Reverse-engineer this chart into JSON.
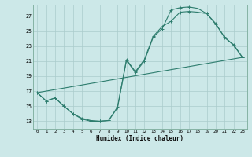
{
  "xlabel": "Humidex (Indice chaleur)",
  "bg_color": "#cce8e8",
  "grid_color": "#b8d8d8",
  "line_color": "#2e7d6e",
  "xlim": [
    -0.5,
    23.5
  ],
  "ylim": [
    12.0,
    28.5
  ],
  "xticks": [
    0,
    1,
    2,
    3,
    4,
    5,
    6,
    7,
    8,
    9,
    10,
    11,
    12,
    13,
    14,
    15,
    16,
    17,
    18,
    19,
    20,
    21,
    22,
    23
  ],
  "yticks": [
    13,
    15,
    17,
    19,
    21,
    23,
    25,
    27
  ],
  "line1_x": [
    0,
    1,
    2,
    3,
    4,
    5,
    6,
    7,
    8,
    9,
    10,
    11,
    12,
    13,
    14,
    15,
    16,
    17,
    18,
    19,
    20,
    21,
    22,
    23
  ],
  "line1_y": [
    16.8,
    15.7,
    16.1,
    15.0,
    14.0,
    13.3,
    13.0,
    13.0,
    13.1,
    14.8,
    21.1,
    19.5,
    21.0,
    24.2,
    25.3,
    27.8,
    28.1,
    28.2,
    28.0,
    27.3,
    26.0,
    24.1,
    23.2,
    21.5
  ],
  "line2_x": [
    0,
    1,
    2,
    3,
    4,
    5,
    6,
    7,
    8,
    9,
    10,
    11,
    12,
    13,
    14,
    15,
    16,
    17,
    18,
    19,
    20,
    21,
    22,
    23
  ],
  "line2_y": [
    16.8,
    15.7,
    16.1,
    15.0,
    14.0,
    13.4,
    13.1,
    13.0,
    13.1,
    14.9,
    21.2,
    19.6,
    21.2,
    24.3,
    25.6,
    26.3,
    27.5,
    27.6,
    27.5,
    27.3,
    25.9,
    24.2,
    23.1,
    21.5
  ],
  "line3_x": [
    0,
    23
  ],
  "line3_y": [
    16.8,
    21.5
  ]
}
